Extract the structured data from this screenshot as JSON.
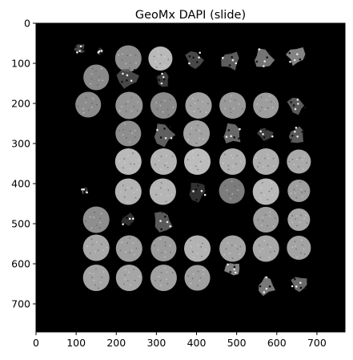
{
  "chart_data": {
    "type": "image",
    "title": "GeoMx DAPI (slide)",
    "xlabel": "",
    "ylabel": "",
    "xlim": [
      0,
      770
    ],
    "ylim": [
      770,
      0
    ],
    "x_ticks": [
      0,
      100,
      200,
      300,
      400,
      500,
      600,
      700
    ],
    "y_ticks": [
      0,
      100,
      200,
      300,
      400,
      500,
      600,
      700
    ],
    "grid": false,
    "colormap": "gray",
    "background_color": "#000000",
    "cores": [
      {
        "x": 110,
        "y": 62,
        "r": 16,
        "fill": "#555555",
        "shape": "fragment"
      },
      {
        "x": 160,
        "y": 70,
        "r": 10,
        "fill": "#4a4a4a",
        "shape": "fragment"
      },
      {
        "x": 230,
        "y": 88,
        "r": 33,
        "fill": "#8e8e8e",
        "shape": "disk"
      },
      {
        "x": 310,
        "y": 88,
        "r": 30,
        "fill": "#b9b9b9",
        "shape": "disk"
      },
      {
        "x": 395,
        "y": 90,
        "r": 26,
        "fill": "#555555",
        "shape": "fragment"
      },
      {
        "x": 485,
        "y": 92,
        "r": 28,
        "fill": "#6d6d6d",
        "shape": "fragment"
      },
      {
        "x": 565,
        "y": 88,
        "r": 30,
        "fill": "#8a8a8a",
        "shape": "fragment"
      },
      {
        "x": 648,
        "y": 82,
        "r": 28,
        "fill": "#9a9a9a",
        "shape": "fragment"
      },
      {
        "x": 150,
        "y": 135,
        "r": 32,
        "fill": "#8a8a8a",
        "shape": "disk"
      },
      {
        "x": 230,
        "y": 135,
        "r": 30,
        "fill": "#555555",
        "shape": "fragment"
      },
      {
        "x": 315,
        "y": 140,
        "r": 22,
        "fill": "#4a4a4a",
        "shape": "fragment"
      },
      {
        "x": 130,
        "y": 203,
        "r": 32,
        "fill": "#8c8c8c",
        "shape": "disk"
      },
      {
        "x": 232,
        "y": 205,
        "r": 34,
        "fill": "#959595",
        "shape": "disk"
      },
      {
        "x": 318,
        "y": 205,
        "r": 33,
        "fill": "#8b8b8b",
        "shape": "disk"
      },
      {
        "x": 405,
        "y": 205,
        "r": 33,
        "fill": "#a2a2a2",
        "shape": "disk"
      },
      {
        "x": 490,
        "y": 205,
        "r": 33,
        "fill": "#999999",
        "shape": "disk"
      },
      {
        "x": 573,
        "y": 205,
        "r": 32,
        "fill": "#9d9d9d",
        "shape": "disk"
      },
      {
        "x": 650,
        "y": 205,
        "r": 26,
        "fill": "#6a6a6a",
        "shape": "fragment"
      },
      {
        "x": 230,
        "y": 275,
        "r": 32,
        "fill": "#8e8e8e",
        "shape": "disk"
      },
      {
        "x": 316,
        "y": 277,
        "r": 32,
        "fill": "#707070",
        "shape": "fragment"
      },
      {
        "x": 400,
        "y": 275,
        "r": 33,
        "fill": "#a2a2a2",
        "shape": "disk"
      },
      {
        "x": 490,
        "y": 277,
        "r": 30,
        "fill": "#7a7a7a",
        "shape": "fragment"
      },
      {
        "x": 572,
        "y": 277,
        "r": 22,
        "fill": "#4a4a4a",
        "shape": "fragment"
      },
      {
        "x": 650,
        "y": 278,
        "r": 24,
        "fill": "#6a6a6a",
        "shape": "fragment"
      },
      {
        "x": 230,
        "y": 345,
        "r": 33,
        "fill": "#b9b9b9",
        "shape": "disk"
      },
      {
        "x": 318,
        "y": 345,
        "r": 33,
        "fill": "#b4b4b4",
        "shape": "disk"
      },
      {
        "x": 402,
        "y": 345,
        "r": 33,
        "fill": "#bcbcbc",
        "shape": "disk"
      },
      {
        "x": 490,
        "y": 345,
        "r": 33,
        "fill": "#b0b0b0",
        "shape": "disk"
      },
      {
        "x": 573,
        "y": 345,
        "r": 33,
        "fill": "#afafaf",
        "shape": "disk"
      },
      {
        "x": 655,
        "y": 345,
        "r": 30,
        "fill": "#aaaaaa",
        "shape": "disk"
      },
      {
        "x": 230,
        "y": 420,
        "r": 33,
        "fill": "#b3b3b3",
        "shape": "disk"
      },
      {
        "x": 316,
        "y": 420,
        "r": 33,
        "fill": "#b5b5b5",
        "shape": "disk"
      },
      {
        "x": 400,
        "y": 420,
        "r": 28,
        "fill": "#3a3a3a",
        "shape": "fragment"
      },
      {
        "x": 488,
        "y": 418,
        "r": 32,
        "fill": "#7c7c7c",
        "shape": "disk"
      },
      {
        "x": 573,
        "y": 420,
        "r": 33,
        "fill": "#b9b9b9",
        "shape": "disk"
      },
      {
        "x": 655,
        "y": 418,
        "r": 28,
        "fill": "#9e9e9e",
        "shape": "disk"
      },
      {
        "x": 122,
        "y": 418,
        "r": 10,
        "fill": "#666666",
        "shape": "fragment"
      },
      {
        "x": 150,
        "y": 490,
        "r": 33,
        "fill": "#8e8e8e",
        "shape": "disk"
      },
      {
        "x": 230,
        "y": 492,
        "r": 20,
        "fill": "#3a3a3a",
        "shape": "fragment"
      },
      {
        "x": 316,
        "y": 495,
        "r": 30,
        "fill": "#6a6a6a",
        "shape": "fragment"
      },
      {
        "x": 573,
        "y": 490,
        "r": 32,
        "fill": "#9e9e9e",
        "shape": "disk"
      },
      {
        "x": 655,
        "y": 490,
        "r": 28,
        "fill": "#a6a6a6",
        "shape": "disk"
      },
      {
        "x": 150,
        "y": 560,
        "r": 33,
        "fill": "#a8a8a8",
        "shape": "disk"
      },
      {
        "x": 232,
        "y": 562,
        "r": 33,
        "fill": "#a0a0a0",
        "shape": "disk"
      },
      {
        "x": 318,
        "y": 562,
        "r": 32,
        "fill": "#9c9c9c",
        "shape": "disk"
      },
      {
        "x": 402,
        "y": 562,
        "r": 33,
        "fill": "#b2b2b2",
        "shape": "disk"
      },
      {
        "x": 490,
        "y": 562,
        "r": 33,
        "fill": "#a5a5a5",
        "shape": "disk"
      },
      {
        "x": 573,
        "y": 562,
        "r": 33,
        "fill": "#a9a9a9",
        "shape": "disk"
      },
      {
        "x": 655,
        "y": 560,
        "r": 30,
        "fill": "#a3a3a3",
        "shape": "disk"
      },
      {
        "x": 150,
        "y": 635,
        "r": 33,
        "fill": "#a4a4a4",
        "shape": "disk"
      },
      {
        "x": 232,
        "y": 635,
        "r": 33,
        "fill": "#a6a6a6",
        "shape": "disk"
      },
      {
        "x": 318,
        "y": 635,
        "r": 33,
        "fill": "#a1a1a1",
        "shape": "disk"
      },
      {
        "x": 402,
        "y": 635,
        "r": 32,
        "fill": "#a0a0a0",
        "shape": "disk"
      },
      {
        "x": 490,
        "y": 612,
        "r": 22,
        "fill": "#9a9a9a",
        "shape": "fragment"
      },
      {
        "x": 573,
        "y": 655,
        "r": 26,
        "fill": "#8e8e8e",
        "shape": "fragment"
      },
      {
        "x": 655,
        "y": 650,
        "r": 24,
        "fill": "#7c7c7c",
        "shape": "fragment"
      }
    ]
  }
}
